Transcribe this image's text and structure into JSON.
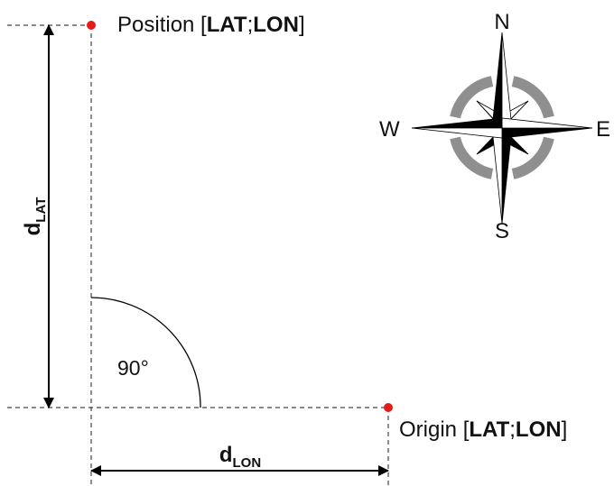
{
  "position_label": {
    "prefix": "Position [",
    "lat": "LAT",
    "sep": ";",
    "lon": "LON",
    "suffix": "]"
  },
  "origin_label": {
    "prefix": "Origin [",
    "lat": "LAT",
    "sep": ";",
    "lon": "LON",
    "suffix": "]"
  },
  "angle_label": "90°",
  "d_lat": {
    "main": "d",
    "sub": "LAT"
  },
  "d_lon": {
    "main": "d",
    "sub": "LON"
  },
  "compass": {
    "north": "N",
    "south": "S",
    "east": "E",
    "west": "W"
  },
  "colors": {
    "point": "#e31b1b",
    "ring": "#8f8f8f",
    "line": "#000000"
  }
}
